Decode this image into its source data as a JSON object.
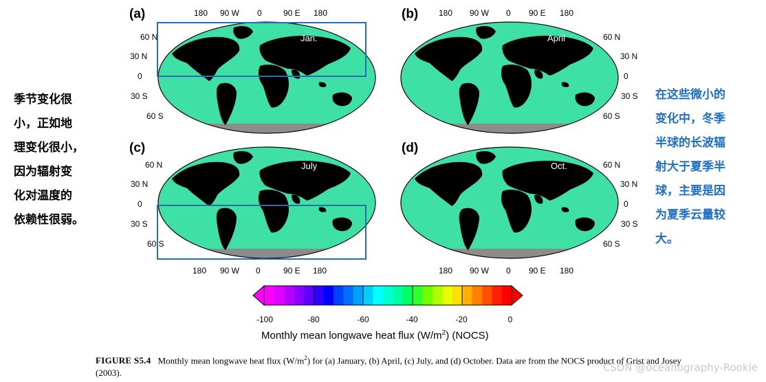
{
  "panels": [
    {
      "label": "(a)",
      "month": "Jan."
    },
    {
      "label": "(b)",
      "month": "April"
    },
    {
      "label": "(c)",
      "month": "July"
    },
    {
      "label": "(d)",
      "month": "Oct."
    }
  ],
  "lon_ticks": [
    "180",
    "90 W",
    "0",
    "90 E",
    "180"
  ],
  "lat_ticks": [
    "60 N",
    "30 N",
    "0",
    "30 S",
    "60 S"
  ],
  "notes": {
    "left_lines": [
      "季节变化很",
      "小，正如地",
      "理变化很小，",
      "因为辐射变",
      "化对温度的",
      "依赖性很弱。"
    ],
    "right_lines": [
      "在这些微小的",
      "变化中，冬季",
      "半球的长波辐",
      "射大于夏季半",
      "球，主要是因",
      "为夏季云量较",
      "大。"
    ]
  },
  "colorbar": {
    "ticks": [
      "-100",
      "-80",
      "-60",
      "-40",
      "-20",
      "0"
    ],
    "title_pre": "Monthly mean longwave heat flux (W/m",
    "title_sup": "2",
    "title_post": ") (NOCS)",
    "colors": [
      "#ff00ff",
      "#e000ff",
      "#b400ff",
      "#8c00ff",
      "#6000ff",
      "#3000ff",
      "#0000ff",
      "#0040ff",
      "#0070ff",
      "#00a0ff",
      "#00d0ff",
      "#00ffff",
      "#00ffd0",
      "#00ffa0",
      "#00ff60",
      "#30ff30",
      "#70ff00",
      "#b0ff00",
      "#e8ff00",
      "#ffe000",
      "#ffb000",
      "#ff8000",
      "#ff5000",
      "#ff2000",
      "#ff0000"
    ],
    "arrow_low": "#ff00ff",
    "arrow_high": "#ff0000"
  },
  "caption": {
    "id": "FIGURE S5.4",
    "text_pre": "Monthly mean longwave heat flux (W/m",
    "text_sup": "2",
    "text_post": ") for (a) January, (b) April, (c) July, and (d) October. Data are from the NOCS product of Grist and Josey (2003)."
  },
  "watermark": "CSDN @oceanography-Rookie",
  "colors": {
    "ocean": "#3fe0a6",
    "land": "#000000",
    "ice": "#8c8c8c",
    "highlight": "#2b6cb0",
    "note_right": "#1e6fc9"
  }
}
